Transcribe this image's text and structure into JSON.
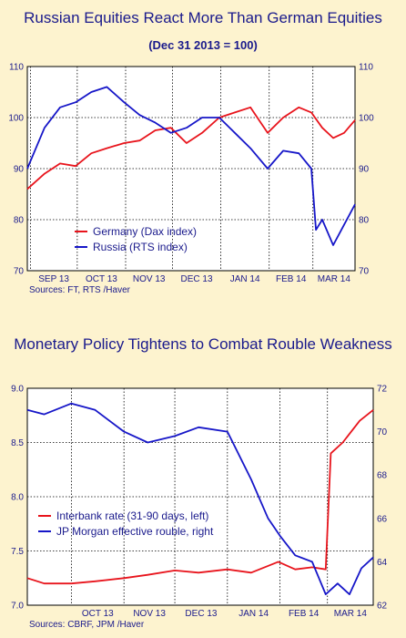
{
  "chart_data": [
    {
      "type": "line",
      "title": "Russian Equities React More Than German Equities",
      "subtitle": "(Dec 31 2013 = 100)",
      "x_tick_labels": [
        "SEP 13",
        "OCT 13",
        "NOV 13",
        "DEC 13",
        "JAN 14",
        "FEB 14",
        "MAR 14"
      ],
      "x_range": [
        "2013-08-30",
        "2014-03-28"
      ],
      "ylim": [
        70,
        110
      ],
      "y_ticks": [
        70,
        80,
        90,
        100,
        110
      ],
      "grid": true,
      "legend": "bottom-left",
      "source": "Sources:  FT, RTS /Haver",
      "series": [
        {
          "name": "Germany (Dax index)",
          "color": "#e8141c",
          "x": [
            "2013-08-30",
            "2013-09-10",
            "2013-09-20",
            "2013-09-30",
            "2013-10-10",
            "2013-10-20",
            "2013-10-31",
            "2013-11-10",
            "2013-11-20",
            "2013-11-30",
            "2013-12-10",
            "2013-12-20",
            "2013-12-31",
            "2014-01-10",
            "2014-01-20",
            "2014-01-31",
            "2014-02-10",
            "2014-02-20",
            "2014-02-28",
            "2014-03-07",
            "2014-03-14",
            "2014-03-21",
            "2014-03-28"
          ],
          "y": [
            86,
            89,
            91,
            90.5,
            93,
            94,
            95,
            95.5,
            97.5,
            98,
            95,
            97,
            100,
            101,
            102,
            97,
            100,
            102,
            101,
            98,
            96,
            97,
            99.5
          ]
        },
        {
          "name": "Russia (RTS index)",
          "color": "#1616c8",
          "x": [
            "2013-08-30",
            "2013-09-10",
            "2013-09-20",
            "2013-09-30",
            "2013-10-10",
            "2013-10-20",
            "2013-10-31",
            "2013-11-10",
            "2013-11-20",
            "2013-11-30",
            "2013-12-10",
            "2013-12-20",
            "2013-12-31",
            "2014-01-10",
            "2014-01-20",
            "2014-01-31",
            "2014-02-10",
            "2014-02-20",
            "2014-02-28",
            "2014-03-03",
            "2014-03-07",
            "2014-03-14",
            "2014-03-21",
            "2014-03-28"
          ],
          "y": [
            90,
            98,
            102,
            103,
            105,
            106,
            103,
            100.5,
            99,
            97,
            98,
            100,
            100,
            97,
            94,
            90,
            93.5,
            93,
            90,
            78,
            80,
            75,
            79,
            83
          ]
        }
      ]
    },
    {
      "type": "line",
      "title": "Monetary Policy Tightens to Combat Rouble Weakness",
      "x_tick_labels": [
        "OCT 13",
        "NOV 13",
        "DEC 13",
        "JAN 14",
        "FEB 14",
        "MAR 14"
      ],
      "x_range": [
        "2013-09-05",
        "2014-03-28"
      ],
      "ylim_left": [
        7.0,
        9.0
      ],
      "y_ticks_left": [
        7.0,
        7.5,
        8.0,
        8.5,
        9.0
      ],
      "ylim_right": [
        62,
        72
      ],
      "y_ticks_right": [
        62,
        64,
        66,
        68,
        70,
        72
      ],
      "grid": true,
      "legend": "bottom-left",
      "source": "Sources:  CBRF, JPM /Haver",
      "series": [
        {
          "name": "Interbank rate (31-90 days, left)",
          "axis": "left",
          "color": "#e8141c",
          "x": [
            "2013-09-05",
            "2013-09-15",
            "2013-10-01",
            "2013-10-15",
            "2013-11-01",
            "2013-11-15",
            "2013-12-01",
            "2013-12-15",
            "2014-01-01",
            "2014-01-15",
            "2014-01-31",
            "2014-02-10",
            "2014-02-20",
            "2014-02-28",
            "2014-03-03",
            "2014-03-10",
            "2014-03-20",
            "2014-03-28"
          ],
          "y": [
            7.25,
            7.2,
            7.2,
            7.22,
            7.25,
            7.28,
            7.32,
            7.3,
            7.33,
            7.3,
            7.4,
            7.33,
            7.35,
            7.33,
            8.4,
            8.5,
            8.7,
            8.8
          ]
        },
        {
          "name": "JP Morgan effective rouble, right",
          "axis": "right",
          "color": "#1616c8",
          "x": [
            "2013-09-05",
            "2013-09-15",
            "2013-10-01",
            "2013-10-15",
            "2013-11-01",
            "2013-11-15",
            "2013-12-01",
            "2013-12-15",
            "2014-01-01",
            "2014-01-15",
            "2014-01-25",
            "2014-02-01",
            "2014-02-10",
            "2014-02-20",
            "2014-02-28",
            "2014-03-07",
            "2014-03-14",
            "2014-03-21",
            "2014-03-28"
          ],
          "y": [
            71,
            70.8,
            71.3,
            71,
            70,
            69.5,
            69.8,
            70.2,
            70,
            67.8,
            66,
            65.2,
            64.3,
            64,
            62.5,
            63,
            62.5,
            63.7,
            64.2
          ]
        }
      ]
    }
  ]
}
